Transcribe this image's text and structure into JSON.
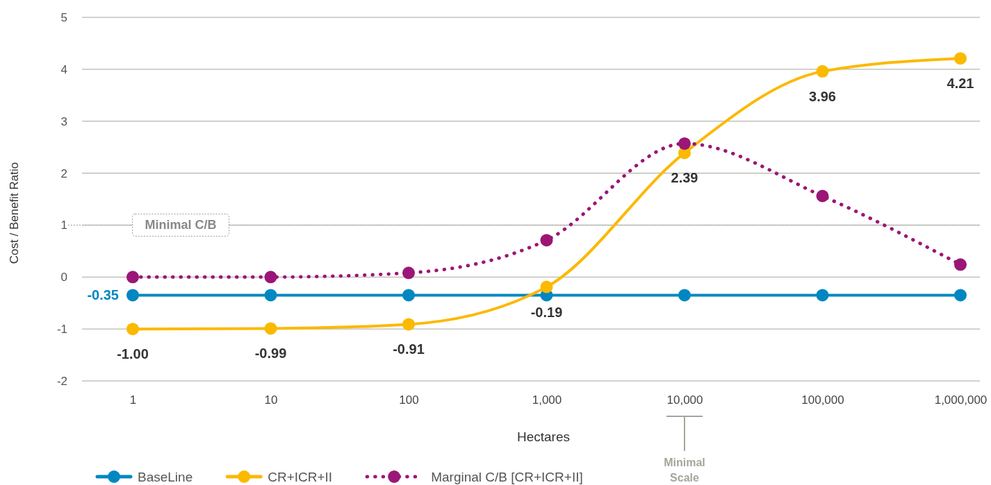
{
  "chart_data": {
    "type": "line",
    "xlabel": "Hectares",
    "ylabel": "Cost / Benefit Ratio",
    "categories": [
      "1",
      "10",
      "100",
      "1,000",
      "10,000",
      "100,000",
      "1,000,000"
    ],
    "series": [
      {
        "name": "BaseLine",
        "color": "#0087c1",
        "values": [
          -0.35,
          -0.35,
          -0.35,
          -0.35,
          -0.35,
          -0.35,
          -0.35
        ],
        "value_labels": [
          "-0.35",
          null,
          null,
          null,
          null,
          null,
          null
        ],
        "line_style": "solid"
      },
      {
        "name": "CR+ICR+II",
        "color": "#fbb900",
        "values": [
          -1.0,
          -0.99,
          -0.91,
          -0.19,
          2.39,
          3.96,
          4.21
        ],
        "value_labels": [
          "-1.00",
          "-0.99",
          "-0.91",
          "-0.19",
          "2.39",
          "3.96",
          "4.21"
        ],
        "line_style": "solid"
      },
      {
        "name": "Marginal C/B [CR+ICR+II]",
        "color": "#9b1677",
        "values": [
          0,
          0,
          0.08,
          0.71,
          2.57,
          1.56,
          0.24
        ],
        "line_style": "dotted"
      }
    ],
    "ylim": [
      -2,
      5
    ],
    "yticks": [
      -2,
      -1,
      0,
      1,
      2,
      3,
      4,
      5
    ],
    "grid": "y",
    "marker": "circle",
    "legend": "bottom left",
    "ref_lines": [
      {
        "axis": "y",
        "value": 1,
        "label": "Minimal C/B",
        "line_style": "dotted",
        "color": "#999999"
      }
    ],
    "annotations": [
      {
        "text": "Minimal Scale",
        "x": "10,000"
      }
    ]
  }
}
